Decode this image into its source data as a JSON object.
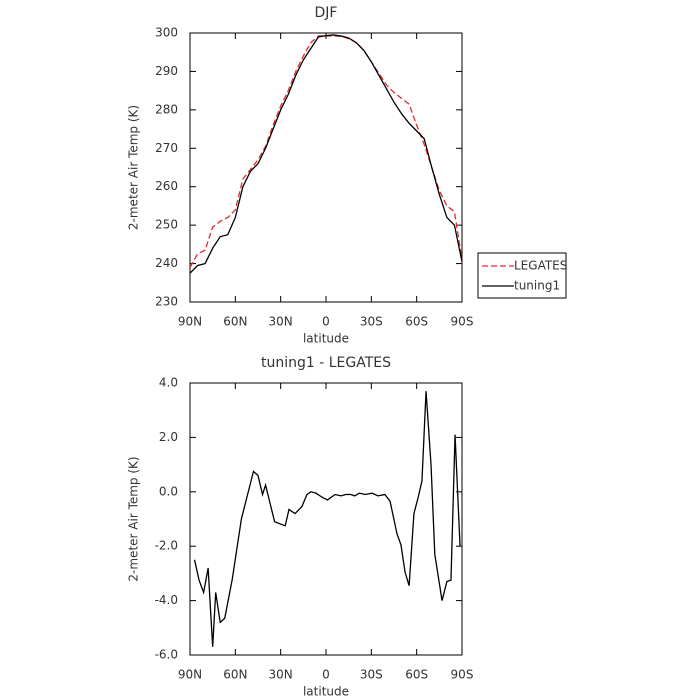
{
  "chart_data": [
    {
      "type": "line",
      "title": "DJF",
      "x_label": "latitude",
      "y_label": "2-meter Air Temp (K)",
      "x": [
        90,
        85,
        80,
        75,
        70,
        65,
        60,
        55,
        50,
        45,
        40,
        35,
        30,
        25,
        20,
        15,
        10,
        5,
        0,
        -5,
        -10,
        -15,
        -20,
        -25,
        -30,
        -35,
        -40,
        -45,
        -50,
        -55,
        -60,
        -65,
        -70,
        -75,
        -80,
        -85,
        -90
      ],
      "series": [
        {
          "name": "LEGATES",
          "color": "#e8282d",
          "dashed": true,
          "values": [
            239,
            242.5,
            243.5,
            249.5,
            251,
            252,
            254,
            262,
            264.5,
            267,
            270.5,
            276,
            281,
            285,
            290,
            294,
            297.5,
            299.2,
            299.3,
            299.2,
            299.2,
            298.5,
            297.5,
            295.5,
            292.5,
            289.5,
            286.5,
            284.5,
            283,
            281.5,
            276,
            271,
            265,
            259,
            255,
            253.5,
            241
          ]
        },
        {
          "name": "tuning1",
          "color": "#000000",
          "dashed": false,
          "values": [
            237.5,
            239.5,
            240,
            244,
            247,
            247.5,
            252,
            260,
            264,
            266,
            270,
            275,
            280,
            284,
            289,
            293,
            296,
            299,
            299.3,
            299.5,
            299.2,
            298.7,
            297.5,
            295.5,
            292.5,
            289,
            285.5,
            282,
            279,
            276.5,
            274.5,
            272.5,
            265,
            258,
            252,
            250,
            240.5
          ]
        }
      ],
      "xlim": [
        90,
        -90
      ],
      "xticks": [
        {
          "value": 90,
          "label": "90N"
        },
        {
          "value": 60,
          "label": "60N"
        },
        {
          "value": 30,
          "label": "30N"
        },
        0,
        {
          "value": -30,
          "label": "30S"
        },
        {
          "value": -60,
          "label": "60S"
        },
        {
          "value": -90,
          "label": "90S"
        }
      ],
      "ylim": [
        230,
        300
      ],
      "yticks": [
        230,
        240,
        250,
        260,
        270,
        280,
        290,
        300
      ],
      "legend": "right"
    },
    {
      "type": "line",
      "title": "tuning1 - LEGATES",
      "x_label": "latitude",
      "y_label": "2-meter Air Temp (K)",
      "x": [
        87,
        84,
        81,
        78,
        75,
        73,
        70,
        67,
        62,
        56,
        48,
        45,
        42,
        40,
        34,
        27,
        24.5,
        20.5,
        16,
        12.6,
        10,
        6.6,
        2.6,
        -1,
        -6,
        -10,
        -13,
        -16.5,
        -19,
        -22,
        -26,
        -30.5,
        -34.4,
        -39,
        -42.4,
        -47,
        -49.6,
        -52.3,
        -55,
        -58.2,
        -61,
        -63.5,
        -66.2,
        -69.5,
        -72,
        -76.8,
        -80,
        -82.7,
        -85.4,
        -88.7
      ],
      "values": [
        -2.5,
        -3.25,
        -3.7,
        -2.8,
        -5.7,
        -3.7,
        -4.8,
        -4.65,
        -3.2,
        -1.0,
        0.75,
        0.6,
        -0.1,
        0.25,
        -1.1,
        -1.25,
        -0.65,
        -0.8,
        -0.55,
        -0.1,
        0.0,
        -0.05,
        -0.2,
        -0.3,
        -0.1,
        -0.15,
        -0.1,
        -0.1,
        -0.15,
        -0.05,
        -0.1,
        -0.05,
        -0.15,
        -0.1,
        -0.35,
        -1.55,
        -1.95,
        -2.95,
        -3.45,
        -0.8,
        -0.2,
        0.4,
        3.7,
        1.0,
        -2.3,
        -4.0,
        -3.3,
        -3.25,
        2.1,
        -2.0
      ],
      "color": "#000000",
      "xlim": [
        90,
        -90
      ],
      "xticks": [
        {
          "value": 90,
          "label": "90N"
        },
        {
          "value": 60,
          "label": "60N"
        },
        {
          "value": 30,
          "label": "30N"
        },
        0,
        {
          "value": -30,
          "label": "30S"
        },
        {
          "value": -60,
          "label": "60S"
        },
        {
          "value": -90,
          "label": "90S"
        }
      ],
      "ylim": [
        -6,
        4
      ],
      "yticks": [
        {
          "value": -6,
          "label": "-6.0"
        },
        {
          "value": -4,
          "label": "-4.0"
        },
        {
          "value": -2,
          "label": "-2.0"
        },
        {
          "value": 0,
          "label": "0.0"
        },
        {
          "value": 2,
          "label": "2.0"
        },
        {
          "value": 4,
          "label": "4.0"
        }
      ]
    }
  ]
}
